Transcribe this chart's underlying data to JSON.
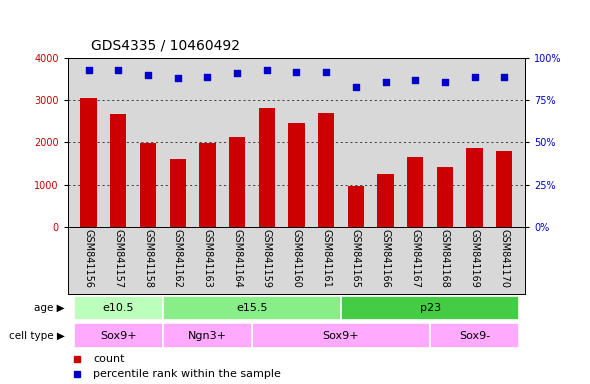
{
  "title": "GDS4335 / 10460492",
  "samples": [
    "GSM841156",
    "GSM841157",
    "GSM841158",
    "GSM841162",
    "GSM841163",
    "GSM841164",
    "GSM841159",
    "GSM841160",
    "GSM841161",
    "GSM841165",
    "GSM841166",
    "GSM841167",
    "GSM841168",
    "GSM841169",
    "GSM841170"
  ],
  "counts": [
    3050,
    2680,
    1980,
    1600,
    1980,
    2120,
    2820,
    2450,
    2700,
    960,
    1260,
    1660,
    1430,
    1870,
    1790
  ],
  "percentiles": [
    93,
    93,
    90,
    88,
    89,
    91,
    93,
    92,
    92,
    83,
    86,
    87,
    86,
    89,
    89
  ],
  "ylim_left": [
    0,
    4000
  ],
  "ylim_right": [
    0,
    100
  ],
  "yticks_left": [
    0,
    1000,
    2000,
    3000,
    4000
  ],
  "yticks_right": [
    0,
    25,
    50,
    75,
    100
  ],
  "bar_color": "#cc0000",
  "dot_color": "#0000cc",
  "age_groups": [
    {
      "label": "e10.5",
      "start": 0,
      "end": 3,
      "color": "#bbffbb"
    },
    {
      "label": "e15.5",
      "start": 3,
      "end": 9,
      "color": "#88ee88"
    },
    {
      "label": "p23",
      "start": 9,
      "end": 15,
      "color": "#44cc44"
    }
  ],
  "cell_type_groups": [
    {
      "label": "Sox9+",
      "start": 0,
      "end": 3,
      "color": "#ffaaff"
    },
    {
      "label": "Ngn3+",
      "start": 3,
      "end": 6,
      "color": "#ffaaff"
    },
    {
      "label": "Sox9+",
      "start": 6,
      "end": 12,
      "color": "#ffaaff"
    },
    {
      "label": "Sox9-",
      "start": 12,
      "end": 15,
      "color": "#ffaaff"
    }
  ],
  "legend_count_label": "count",
  "legend_pct_label": "percentile rank within the sample",
  "axis_bg": "#d8d8d8",
  "plot_bg": "#ffffff",
  "title_fontsize": 10,
  "tick_fontsize": 7,
  "bar_label_fontsize": 7,
  "row_fontsize": 8
}
